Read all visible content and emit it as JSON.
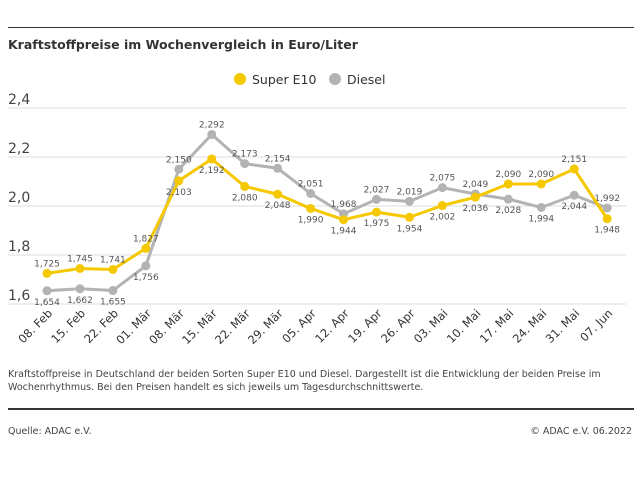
{
  "header": {
    "title": "Kraftstoffpreise im Wochenvergleich in Euro/Liter"
  },
  "chart_data": {
    "type": "line",
    "title": "Kraftstoffpreise im Wochenvergleich in Euro/Liter",
    "categories": [
      "08. Feb",
      "15. Feb",
      "22. Feb",
      "01. Mär",
      "08. Mär",
      "15. Mär",
      "22. Mär",
      "29. Mär",
      "05. Apr",
      "12. Apr",
      "19. Apr",
      "26. Apr",
      "03. Mai",
      "10. Mai",
      "17. Mai",
      "24. Mai",
      "31. Mai",
      "07. Jun"
    ],
    "series": [
      {
        "name": "Super E10",
        "color": "#f5c800",
        "values": [
          1.725,
          1.745,
          1.741,
          1.827,
          2.103,
          2.192,
          2.08,
          2.048,
          1.99,
          1.944,
          1.975,
          1.954,
          2.002,
          2.036,
          2.09,
          2.09,
          2.151,
          1.948
        ]
      },
      {
        "name": "Diesel",
        "color": "#b3b3b3",
        "values": [
          1.654,
          1.662,
          1.655,
          1.756,
          2.15,
          2.292,
          2.173,
          2.154,
          2.051,
          1.968,
          2.027,
          2.019,
          2.075,
          2.049,
          2.028,
          1.994,
          2.044,
          1.992
        ]
      }
    ],
    "yticks": [
      "1,6",
      "1,8",
      "2,0",
      "2,2",
      "2,4"
    ],
    "ylim": [
      1.6,
      2.4
    ],
    "grid": true,
    "legend": "top-center"
  },
  "caption": "Kraftstoffpreise in Deutschland der beiden Sorten Super E10 und Diesel. Dargestellt ist die Entwicklung der beiden Preise im Wochenrhythmus. Bei den Preisen handelt es sich jeweils um Tagesdurchschnittswerte.",
  "footer": {
    "source": "Quelle: ADAC e.V.",
    "copyright": "© ADAC e.V. 06.2022"
  }
}
